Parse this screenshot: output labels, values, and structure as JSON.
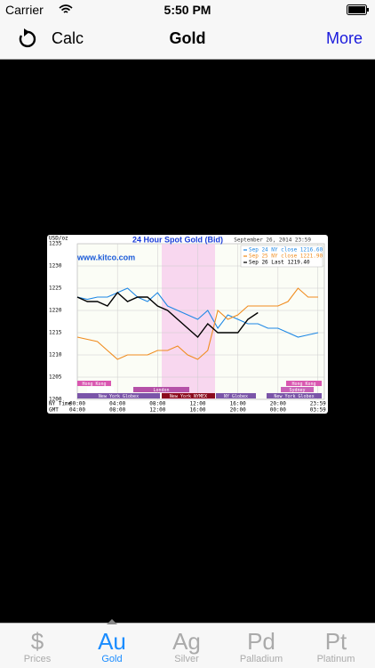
{
  "status_bar": {
    "carrier": "Carrier",
    "time": "5:50 PM"
  },
  "nav_bar": {
    "left": "Calc",
    "title": "Gold",
    "right": "More"
  },
  "chart_data": {
    "type": "line",
    "title": "24 Hour Spot Gold (Bid)",
    "date": "September 26, 2014 23:59",
    "y_unit": "USD/oz",
    "watermark": "www.kitco.com",
    "xlim": [
      0,
      24
    ],
    "ylim": [
      1200,
      1235
    ],
    "yticks": [
      1200,
      1205,
      1210,
      1215,
      1220,
      1225,
      1230,
      1235
    ],
    "xticks": [
      {
        "value": 0,
        "label": "00:00"
      },
      {
        "value": 4,
        "label": "04:00"
      },
      {
        "value": 8,
        "label": "08:00"
      },
      {
        "value": 12,
        "label": "12:00"
      },
      {
        "value": 16,
        "label": "16:00"
      },
      {
        "value": 20,
        "label": "20:00"
      },
      {
        "value": 23.98,
        "label": "23:59"
      }
    ],
    "x_row_label": "NY Time",
    "x2_row_label": "GMT",
    "x2_labels": [
      "04:00",
      "08:00",
      "12:00",
      "16:00",
      "20:00",
      "00:00",
      "03:59"
    ],
    "grid": true,
    "x": [
      0,
      1,
      2,
      3,
      4,
      5,
      6,
      7,
      8,
      9,
      10,
      11,
      12,
      13,
      14,
      15,
      16,
      17,
      18,
      19,
      20,
      21,
      22,
      23,
      24
    ],
    "series": [
      {
        "name": "Sep 24 NY close 1216.60",
        "color": "#1e88e5",
        "values": [
          1223,
          1222.5,
          1223,
          1223,
          1224,
          1225,
          1223,
          1222,
          1224,
          1221,
          1220,
          1219,
          1218,
          1220,
          1216,
          1219,
          1218,
          1217,
          1217,
          1216,
          1216,
          1215,
          1214,
          1214.5,
          1215
        ]
      },
      {
        "name": "Sep 25 NY close 1221.90",
        "color": "#f08c1e",
        "values": [
          1214,
          1213.5,
          1213,
          1211,
          1209,
          1210,
          1210,
          1210,
          1211,
          1211,
          1212,
          1210,
          1209,
          1211,
          1220,
          1218,
          1219,
          1221,
          1221,
          1221,
          1221,
          1222,
          1225,
          1223,
          1223
        ]
      },
      {
        "name": "Sep 26 Last 1219.40",
        "color": "#000000",
        "values": [
          1223,
          1222,
          1222,
          1221,
          1224,
          1222,
          1223,
          1223,
          1221,
          1220,
          1218,
          1216,
          1214,
          1217,
          1215,
          1215,
          1215,
          1218,
          1219.5,
          null,
          null,
          null,
          null,
          null,
          null
        ]
      }
    ],
    "sessions": [
      "Hong Kong",
      "Hong Kong",
      "London",
      "Sydney",
      "New York Globex",
      "New York NYMEX",
      "NY Globex",
      "New York Globex"
    ]
  },
  "tabs": [
    {
      "symbol": "$",
      "label": "Prices"
    },
    {
      "symbol": "Au",
      "label": "Gold"
    },
    {
      "symbol": "Ag",
      "label": "Silver"
    },
    {
      "symbol": "Pd",
      "label": "Palladium"
    },
    {
      "symbol": "Pt",
      "label": "Platinum"
    }
  ]
}
